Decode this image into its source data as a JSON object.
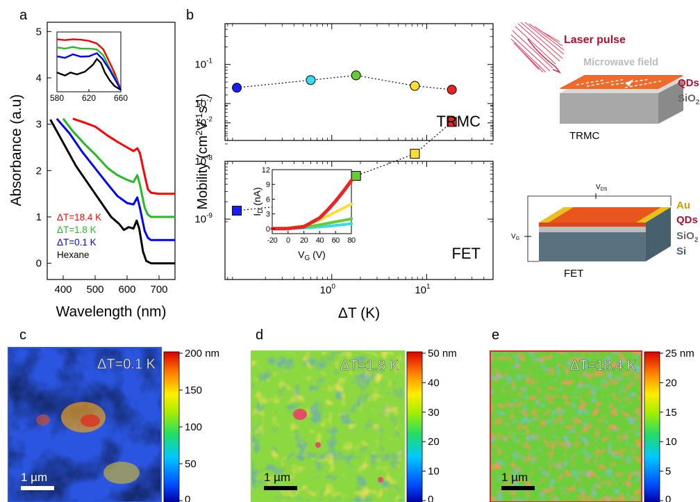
{
  "chart_data": [
    {
      "panel": "a",
      "type": "line",
      "xlabel": "Wavelength (nm)",
      "ylabel": "Absorbance (a.u)",
      "xlim": [
        350,
        750
      ],
      "ylim": [
        -0.35,
        5.2
      ],
      "xticks": [
        400,
        500,
        600,
        700
      ],
      "yticks": [
        0,
        1,
        2,
        3,
        4,
        5
      ],
      "legend": [
        "ΔT=18.4 K",
        "ΔT=1.8 K",
        "ΔT=0.1 K",
        "Hexane"
      ],
      "series": [
        {
          "name": "ΔT=18.4 K",
          "color": "#ff0000",
          "x": [
            430,
            460,
            500,
            540,
            570,
            600,
            620,
            632,
            640,
            655,
            665,
            675,
            700,
            750
          ],
          "y": [
            3.12,
            3.05,
            2.95,
            2.75,
            2.62,
            2.5,
            2.42,
            2.48,
            2.38,
            1.9,
            1.6,
            1.52,
            1.5,
            1.5
          ]
        },
        {
          "name": "ΔT=1.8 K",
          "color": "#22bb22",
          "x": [
            400,
            430,
            470,
            500,
            540,
            570,
            600,
            620,
            632,
            640,
            655,
            665,
            675,
            700,
            750
          ],
          "y": [
            3.12,
            2.85,
            2.55,
            2.35,
            2.05,
            1.9,
            1.8,
            1.75,
            1.9,
            1.7,
            1.2,
            1.05,
            1.0,
            1.0,
            1.0
          ]
        },
        {
          "name": "ΔT=0.1 K",
          "color": "#0000ff",
          "x": [
            380,
            420,
            460,
            500,
            540,
            570,
            600,
            620,
            632,
            640,
            655,
            665,
            675,
            700,
            750
          ],
          "y": [
            3.12,
            2.8,
            2.4,
            2.05,
            1.7,
            1.45,
            1.3,
            1.27,
            1.42,
            1.2,
            0.7,
            0.55,
            0.5,
            0.5,
            0.5
          ]
        },
        {
          "name": "Hexane",
          "color": "#000000",
          "x": [
            360,
            400,
            440,
            480,
            520,
            550,
            575,
            590,
            605,
            620,
            630,
            638,
            650,
            660,
            675,
            700,
            750
          ],
          "y": [
            3.1,
            2.6,
            2.1,
            1.7,
            1.3,
            1.0,
            0.85,
            0.72,
            0.78,
            0.75,
            0.92,
            0.75,
            0.25,
            0.05,
            0.0,
            0.0,
            0.0
          ]
        }
      ],
      "inset": {
        "xlim": [
          580,
          660
        ],
        "xticks": [
          580,
          620,
          660
        ],
        "series": [
          {
            "name": "ΔT=18.4 K",
            "color": "#ff0000",
            "x": [
              580,
              590,
              600,
              610,
              620,
              630,
              638,
              645,
              652,
              660
            ],
            "y": [
              4.86,
              4.84,
              4.86,
              4.85,
              4.82,
              4.75,
              4.6,
              4.3,
              4.0,
              3.55
            ]
          },
          {
            "name": "ΔT=1.8 K",
            "color": "#22bb22",
            "x": [
              580,
              590,
              600,
              610,
              620,
              630,
              638,
              645,
              652,
              660
            ],
            "y": [
              4.65,
              4.62,
              4.66,
              4.62,
              4.62,
              4.6,
              4.45,
              4.15,
              3.9,
              3.55
            ]
          },
          {
            "name": "ΔT=0.1 K",
            "color": "#0000ff",
            "x": [
              580,
              590,
              600,
              610,
              620,
              625,
              630,
              637,
              645,
              652,
              660
            ],
            "y": [
              4.42,
              4.38,
              4.47,
              4.41,
              4.42,
              4.46,
              4.5,
              4.35,
              4.1,
              3.85,
              3.55
            ]
          },
          {
            "name": "Hexane",
            "color": "#000000",
            "x": [
              580,
              590,
              597,
              605,
              615,
              625,
              630,
              635,
              640,
              646,
              652,
              660
            ],
            "y": [
              4.0,
              3.92,
              4.0,
              3.95,
              4.02,
              4.2,
              4.35,
              4.25,
              4.0,
              3.8,
              3.65,
              3.55
            ]
          }
        ]
      }
    },
    {
      "panel": "b-top",
      "type": "scatter",
      "scale": "log-log",
      "xlim": [
        0.075,
        50
      ],
      "ylim": [
        0.005,
        0.5
      ],
      "yticks": [
        "10^-2",
        "10^-1"
      ],
      "label": "TRMC",
      "x": [
        0.1,
        0.6,
        1.8,
        7.5,
        18.4
      ],
      "y": [
        0.04,
        0.054,
        0.065,
        0.043,
        0.037
      ],
      "colors": [
        "#1a1aff",
        "#33ddee",
        "#66cc33",
        "#ffdd33",
        "#ee2222"
      ]
    },
    {
      "panel": "b-bottom",
      "type": "scatter",
      "scale": "log-log",
      "xlim": [
        0.075,
        50
      ],
      "ylim": [
        0.0009,
        0.1
      ],
      "xticks": [
        "10^0",
        "10^1"
      ],
      "yticks": [
        "10^-9",
        "10^-8",
        "10^-7"
      ],
      "xlabel": "ΔT (K)",
      "ylabel": "Mobility (cm2V-1s-1)",
      "label": "FET",
      "x": [
        0.1,
        0.6,
        1.8,
        7.5,
        18.4
      ],
      "y": [
        1.4e-09,
        1.9e-09,
        5.6e-09,
        1.35e-08,
        4.8e-08
      ],
      "colors": [
        "#1a1aff",
        "#33ddee",
        "#66cc33",
        "#ffdd33",
        "#ee2222"
      ],
      "inset": {
        "xlabel": "V_G (V)",
        "ylabel": "I_D (nA)",
        "xlim": [
          -20,
          80
        ],
        "ylim": [
          -1,
          12
        ],
        "xticks": [
          -20,
          0,
          20,
          40,
          60,
          80
        ],
        "yticks": [
          0,
          3,
          6,
          9,
          12
        ],
        "series": [
          {
            "color": "#ee2222",
            "x": [
              -20,
              0,
              20,
              40,
              50,
              60,
              70,
              80
            ],
            "y": [
              0,
              0.05,
              0.4,
              2.2,
              3.8,
              5.6,
              7.6,
              9.8
            ]
          },
          {
            "color": "#ffdd33",
            "x": [
              -20,
              0,
              20,
              40,
              60,
              80
            ],
            "y": [
              0,
              0.1,
              0.6,
              1.8,
              3.4,
              5.0
            ]
          },
          {
            "color": "#66cc33",
            "x": [
              -20,
              0,
              20,
              40,
              60,
              80
            ],
            "y": [
              0,
              0.05,
              0.3,
              0.8,
              1.4,
              2.0
            ]
          },
          {
            "color": "#33ddee",
            "x": [
              -20,
              0,
              20,
              40,
              60,
              80
            ],
            "y": [
              0,
              0.02,
              0.15,
              0.35,
              0.65,
              1.0
            ]
          }
        ]
      }
    }
  ],
  "text": {
    "label_a": "a",
    "label_b": "b",
    "label_c": "c",
    "label_d": "d",
    "label_e": "e",
    "a_xlabel": "Wavelength (nm)",
    "a_ylabel": "Absorbance (a.u)",
    "b_xlabel": "ΔT (K)",
    "b_ylabel_main": "Mobility (cm",
    "trmc_label": "TRMC",
    "fet_label": "FET",
    "inset_xlabel": "V",
    "inset_xlabel_sub": "G",
    "inset_xlabel_unit": " (V)",
    "inset_ylabel": "I",
    "inset_ylabel_sub": "D",
    "inset_ylabel_unit": " (nA)",
    "laser_pulse": "Laser pulse",
    "microwave_field": "Microwave field",
    "qds": "QDs",
    "sio2": "SiO",
    "sio2_sub": "2",
    "au": "Au",
    "si": "Si",
    "trmc_device": "TRMC",
    "fet_device": "FET",
    "vds": "V",
    "vds_sub": "DS",
    "vg": "V",
    "vg_sub": "G",
    "c_title": "ΔT=0.1 K",
    "d_title": "ΔT=1.8 K",
    "e_title": "ΔT=18.4 K",
    "scalebar": "1 µm",
    "c_cbar": [
      "200 nm",
      "150",
      "100",
      "50",
      "0"
    ],
    "d_cbar": [
      "50 nm",
      "40",
      "30",
      "20",
      "10",
      "0"
    ],
    "e_cbar": [
      "25 nm",
      "20",
      "15",
      "10",
      "5",
      "0"
    ]
  }
}
